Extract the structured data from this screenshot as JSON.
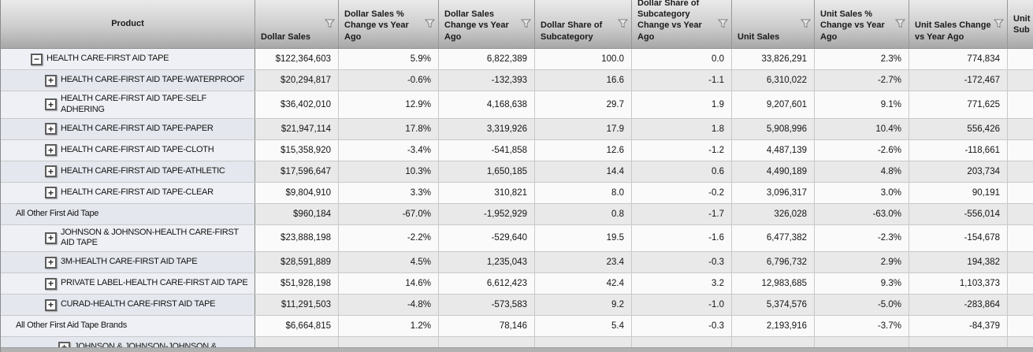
{
  "theme": {
    "header_gradient_top": "#eaeaea",
    "header_gradient_bottom": "#a8a8a8",
    "row_light_bg": "#fafafa",
    "row_dark_bg": "#e9e9e9",
    "product_col_light_bg": "#eef0f5",
    "product_col_dark_bg": "#e4e7ee",
    "grid_line": "#c9c9c9",
    "product_separator": "#858585"
  },
  "icons": {
    "collapse_glyph": "−",
    "expand_glyph": "+",
    "filter_icon": "funnel"
  },
  "table": {
    "columns": [
      {
        "key": "product",
        "label": "Product",
        "filter": false
      },
      {
        "key": "dollar-sales",
        "label": "Dollar Sales",
        "filter": true
      },
      {
        "key": "dollar-sales-pct-change",
        "label": "Dollar Sales % Change vs Year Ago",
        "filter": true
      },
      {
        "key": "dollar-sales-change",
        "label": "Dollar Sales Change vs Year Ago",
        "filter": true
      },
      {
        "key": "dollar-share",
        "label": "Dollar Share of Subcategory",
        "filter": true
      },
      {
        "key": "dollar-share-change",
        "label": "Dollar Share of Subcategory Change vs Year Ago",
        "filter": true
      },
      {
        "key": "unit-sales",
        "label": "Unit Sales",
        "filter": true
      },
      {
        "key": "unit-sales-pct-change",
        "label": "Unit Sales % Change vs Year Ago",
        "filter": true
      },
      {
        "key": "unit-sales-change",
        "label": "Unit Sales Change vs Year Ago",
        "filter": true
      },
      {
        "key": "unit-sub-cutoff",
        "label": "Unit Sub",
        "filter": false
      }
    ],
    "rows": [
      {
        "product": "HEALTH CARE-FIRST AID TAPE",
        "expander": "collapse",
        "level": 0,
        "cells": [
          "$122,364,603",
          "5.9%",
          "6,822,389",
          "100.0",
          "0.0",
          "33,826,291",
          "2.3%",
          "774,834"
        ]
      },
      {
        "product": "HEALTH CARE-FIRST AID TAPE-WATERPROOF",
        "expander": "expand",
        "level": 1,
        "cells": [
          "$20,294,817",
          "-0.6%",
          "-132,393",
          "16.6",
          "-1.1",
          "6,310,022",
          "-2.7%",
          "-172,467"
        ]
      },
      {
        "product": "HEALTH CARE-FIRST AID TAPE-SELF ADHERING",
        "expander": "expand",
        "level": 1,
        "cells": [
          "$36,402,010",
          "12.9%",
          "4,168,638",
          "29.7",
          "1.9",
          "9,207,601",
          "9.1%",
          "771,625"
        ]
      },
      {
        "product": "HEALTH CARE-FIRST AID TAPE-PAPER",
        "expander": "expand",
        "level": 1,
        "cells": [
          "$21,947,114",
          "17.8%",
          "3,319,926",
          "17.9",
          "1.8",
          "5,908,996",
          "10.4%",
          "556,426"
        ]
      },
      {
        "product": "HEALTH CARE-FIRST AID TAPE-CLOTH",
        "expander": "expand",
        "level": 1,
        "cells": [
          "$15,358,920",
          "-3.4%",
          "-541,858",
          "12.6",
          "-1.2",
          "4,487,139",
          "-2.6%",
          "-118,661"
        ]
      },
      {
        "product": "HEALTH CARE-FIRST AID TAPE-ATHLETIC",
        "expander": "expand",
        "level": 1,
        "cells": [
          "$17,596,647",
          "10.3%",
          "1,650,185",
          "14.4",
          "0.6",
          "4,490,189",
          "4.8%",
          "203,734"
        ]
      },
      {
        "product": "HEALTH CARE-FIRST AID TAPE-CLEAR",
        "expander": "expand",
        "level": 1,
        "cells": [
          "$9,804,910",
          "3.3%",
          "310,821",
          "8.0",
          "-0.2",
          "3,096,317",
          "3.0%",
          "90,191"
        ]
      },
      {
        "product": "All Other First Aid Tape",
        "expander": null,
        "level": 0,
        "cells": [
          "$960,184",
          "-67.0%",
          "-1,952,929",
          "0.8",
          "-1.7",
          "326,028",
          "-63.0%",
          "-556,014"
        ]
      },
      {
        "product": "JOHNSON & JOHNSON-HEALTH CARE-FIRST AID TAPE",
        "expander": "expand",
        "level": 1,
        "cells": [
          "$23,888,198",
          "-2.2%",
          "-529,640",
          "19.5",
          "-1.6",
          "6,477,382",
          "-2.3%",
          "-154,678"
        ]
      },
      {
        "product": "3M-HEALTH CARE-FIRST AID TAPE",
        "expander": "expand",
        "level": 1,
        "cells": [
          "$28,591,889",
          "4.5%",
          "1,235,043",
          "23.4",
          "-0.3",
          "6,796,732",
          "2.9%",
          "194,382"
        ]
      },
      {
        "product": "PRIVATE LABEL-HEALTH CARE-FIRST AID TAPE",
        "expander": "expand",
        "level": 1,
        "cells": [
          "$51,928,198",
          "14.6%",
          "6,612,423",
          "42.4",
          "3.2",
          "12,983,685",
          "9.3%",
          "1,103,373"
        ]
      },
      {
        "product": "CURAD-HEALTH CARE-FIRST AID TAPE",
        "expander": "expand",
        "level": 1,
        "cells": [
          "$11,291,503",
          "-4.8%",
          "-573,583",
          "9.2",
          "-1.0",
          "5,374,576",
          "-5.0%",
          "-283,864"
        ]
      },
      {
        "product": "All Other First Aid Tape Brands",
        "expander": null,
        "level": 0,
        "cells": [
          "$6,664,815",
          "1.2%",
          "78,146",
          "5.4",
          "-0.3",
          "2,193,916",
          "-3.7%",
          "-84,379"
        ]
      },
      {
        "product": "JOHNSON & JOHNSON-JOHNSON &",
        "expander": "expand",
        "level": 2,
        "cells": [
          "",
          "",
          "",
          "",
          "",
          "",
          "",
          ""
        ]
      }
    ]
  }
}
